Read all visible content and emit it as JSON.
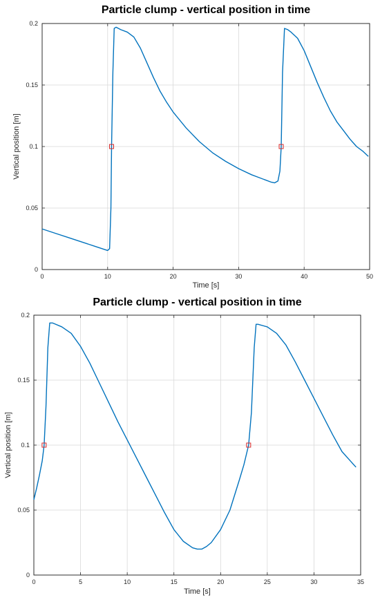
{
  "chart_data": [
    {
      "type": "line",
      "title": "Particle clump - vertical position in time",
      "xlabel": "Time [s]",
      "ylabel": "Vertical position [m]",
      "xlim": [
        0,
        50
      ],
      "ylim": [
        0,
        0.2
      ],
      "xticks": [
        0,
        10,
        20,
        30,
        40,
        50
      ],
      "yticks": [
        0,
        0.05,
        0.1,
        0.15,
        0.2
      ],
      "xtick_labels": [
        "0",
        "10",
        "20",
        "30",
        "40",
        "50"
      ],
      "ytick_labels": [
        "0",
        "0.05",
        "0.1",
        "0.15",
        "0.2"
      ],
      "grid": true,
      "series": [
        {
          "x": [
            0,
            2,
            4,
            6,
            8,
            10,
            10.3,
            10.5,
            10.6,
            10.8,
            11.0,
            11.3,
            12,
            13,
            14,
            15,
            16,
            17,
            18,
            19,
            20,
            22,
            24,
            26,
            28,
            30,
            32,
            34,
            35,
            35.5,
            36,
            36.3,
            36.5,
            36.7,
            37.0,
            37.5,
            38,
            39,
            40,
            41,
            42,
            43,
            44,
            45,
            46,
            47,
            48,
            49,
            49.8
          ],
          "y": [
            0.033,
            0.0295,
            0.026,
            0.0225,
            0.019,
            0.0155,
            0.017,
            0.05,
            0.1,
            0.16,
            0.196,
            0.197,
            0.195,
            0.193,
            0.189,
            0.18,
            0.168,
            0.156,
            0.145,
            0.136,
            0.128,
            0.115,
            0.104,
            0.095,
            0.088,
            0.082,
            0.077,
            0.073,
            0.071,
            0.0705,
            0.072,
            0.08,
            0.1,
            0.16,
            0.196,
            0.195,
            0.193,
            0.188,
            0.178,
            0.165,
            0.152,
            0.14,
            0.129,
            0.12,
            0.113,
            0.106,
            0.1,
            0.096,
            0.092
          ]
        }
      ],
      "markers": [
        {
          "x": 10.6,
          "y": 0.1
        },
        {
          "x": 36.5,
          "y": 0.1
        }
      ],
      "line_color": "#0072bd",
      "marker_color": "#d62728"
    },
    {
      "type": "line",
      "title": "Particle clump - vertical position in time",
      "xlabel": "Time [s]",
      "ylabel": "Vertical position [m]",
      "xlim": [
        0,
        35
      ],
      "ylim": [
        0,
        0.2
      ],
      "xticks": [
        0,
        5,
        10,
        15,
        20,
        25,
        30,
        35
      ],
      "yticks": [
        0,
        0.05,
        0.1,
        0.15,
        0.2
      ],
      "xtick_labels": [
        "0",
        "5",
        "10",
        "15",
        "20",
        "25",
        "30",
        "35"
      ],
      "ytick_labels": [
        "0",
        "0.05",
        "0.1",
        "0.15",
        "0.2"
      ],
      "grid": true,
      "series": [
        {
          "x": [
            0,
            0.3,
            0.6,
            0.9,
            1.1,
            1.3,
            1.5,
            1.7,
            2,
            3,
            4,
            5,
            6,
            7,
            8,
            9,
            10,
            11,
            12,
            13,
            14,
            15,
            16,
            17,
            17.5,
            18,
            18.5,
            19,
            20,
            21,
            22,
            22.5,
            23.0,
            23.3,
            23.6,
            23.8,
            24,
            25,
            26,
            27,
            28,
            29,
            30,
            31,
            32,
            33,
            34,
            34.5
          ],
          "y": [
            0.058,
            0.067,
            0.077,
            0.088,
            0.1,
            0.13,
            0.175,
            0.194,
            0.194,
            0.191,
            0.186,
            0.176,
            0.163,
            0.148,
            0.133,
            0.118,
            0.104,
            0.09,
            0.076,
            0.062,
            0.048,
            0.035,
            0.026,
            0.021,
            0.02,
            0.02,
            0.022,
            0.025,
            0.035,
            0.05,
            0.073,
            0.085,
            0.1,
            0.125,
            0.175,
            0.193,
            0.193,
            0.191,
            0.186,
            0.177,
            0.164,
            0.15,
            0.136,
            0.122,
            0.108,
            0.095,
            0.087,
            0.083
          ]
        }
      ],
      "markers": [
        {
          "x": 1.1,
          "y": 0.1
        },
        {
          "x": 23.0,
          "y": 0.1
        }
      ],
      "line_color": "#0072bd",
      "marker_color": "#d62728"
    }
  ]
}
